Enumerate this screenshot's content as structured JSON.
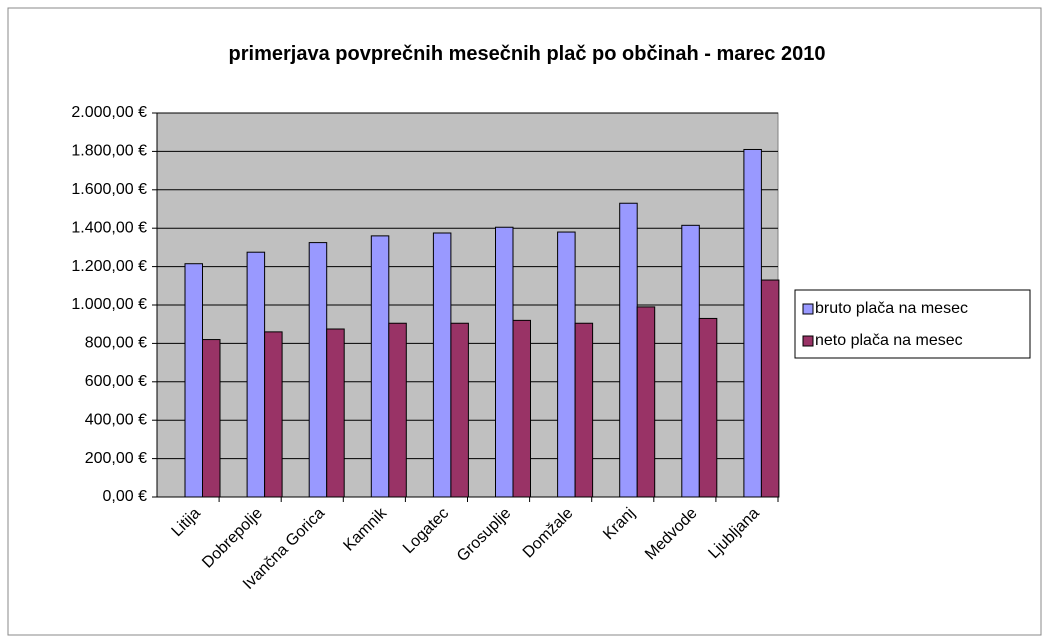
{
  "chart_data": {
    "type": "bar",
    "title": "primerjava povprečnih mesečnih plač po občinah - marec 2010",
    "categories": [
      "Litija",
      "Dobrepolje",
      "Ivančna Gorica",
      "Kamnik",
      "Logatec",
      "Grosuplje",
      "Domžale",
      "Kranj",
      "Medvode",
      "Ljubljana"
    ],
    "series": [
      {
        "name": "bruto plača na mesec",
        "color": "#9999ff",
        "values": [
          1215,
          1275,
          1325,
          1360,
          1375,
          1405,
          1380,
          1530,
          1415,
          1810
        ]
      },
      {
        "name": "neto plača na mesec",
        "color": "#993366",
        "values": [
          820,
          860,
          875,
          905,
          905,
          920,
          905,
          990,
          930,
          1130
        ]
      }
    ],
    "ylim": [
      0,
      2000
    ],
    "yticks": [
      {
        "value": 0,
        "label": "0,00 €"
      },
      {
        "value": 200,
        "label": "200,00 €"
      },
      {
        "value": 400,
        "label": "400,00 €"
      },
      {
        "value": 600,
        "label": "600,00 €"
      },
      {
        "value": 800,
        "label": "800,00 €"
      },
      {
        "value": 1000,
        "label": "1.000,00 €"
      },
      {
        "value": 1200,
        "label": "1.200,00 €"
      },
      {
        "value": 1400,
        "label": "1.400,00 €"
      },
      {
        "value": 1600,
        "label": "1.600,00 €"
      },
      {
        "value": 1800,
        "label": "1.800,00 €"
      },
      {
        "value": 2000,
        "label": "2.000,00 €"
      }
    ],
    "grid": true,
    "legend": "right"
  }
}
